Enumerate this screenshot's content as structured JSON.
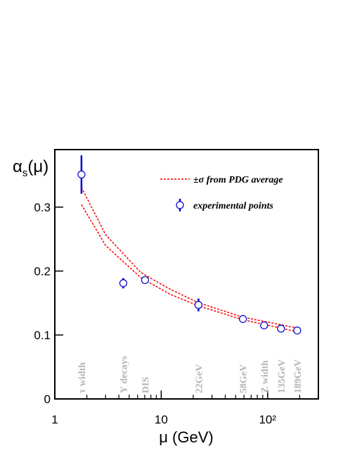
{
  "chart_data": {
    "type": "scatter",
    "xlabel": "μ (GeV)",
    "ylabel": {
      "symbol": "α",
      "subscript": "s",
      "argument": "(μ)"
    },
    "xscale": "log",
    "xlim": [
      1,
      300
    ],
    "ylim": [
      0,
      0.39
    ],
    "xticks": [
      1,
      10,
      {
        "value": 100,
        "label": "10²"
      }
    ],
    "xminorticks": [
      2,
      3,
      4,
      5,
      6,
      7,
      8,
      9,
      20,
      30,
      40,
      50,
      60,
      70,
      80,
      90,
      200,
      300
    ],
    "yticks": [
      0,
      0.1,
      0.2,
      0.3
    ],
    "curves": {
      "name": "±σ from PDG average",
      "color": "#ff0000",
      "x": [
        1.78,
        3.0,
        6.4,
        12,
        22,
        58,
        190
      ],
      "upper": [
        0.331,
        0.257,
        0.198,
        0.172,
        0.151,
        0.128,
        0.111
      ],
      "lower": [
        0.304,
        0.24,
        0.19,
        0.164,
        0.146,
        0.124,
        0.105
      ]
    },
    "points": {
      "name": "experimental points",
      "color": "#0000cc",
      "x": [
        1.78,
        4.4,
        7.05,
        22.4,
        58.6,
        92.7,
        133.6,
        189.7
      ],
      "values": [
        0.351,
        0.181,
        0.186,
        0.147,
        0.125,
        0.115,
        0.11,
        0.107
      ],
      "errors": [
        0.03,
        0.008,
        0.005,
        0.01,
        0.006,
        0.003,
        0.006,
        0.003
      ],
      "labels": [
        "τ width",
        "Υ decays",
        "DIS",
        "22GeV",
        "58GeV",
        "Z width",
        "135GeV",
        "189GeV"
      ]
    }
  }
}
